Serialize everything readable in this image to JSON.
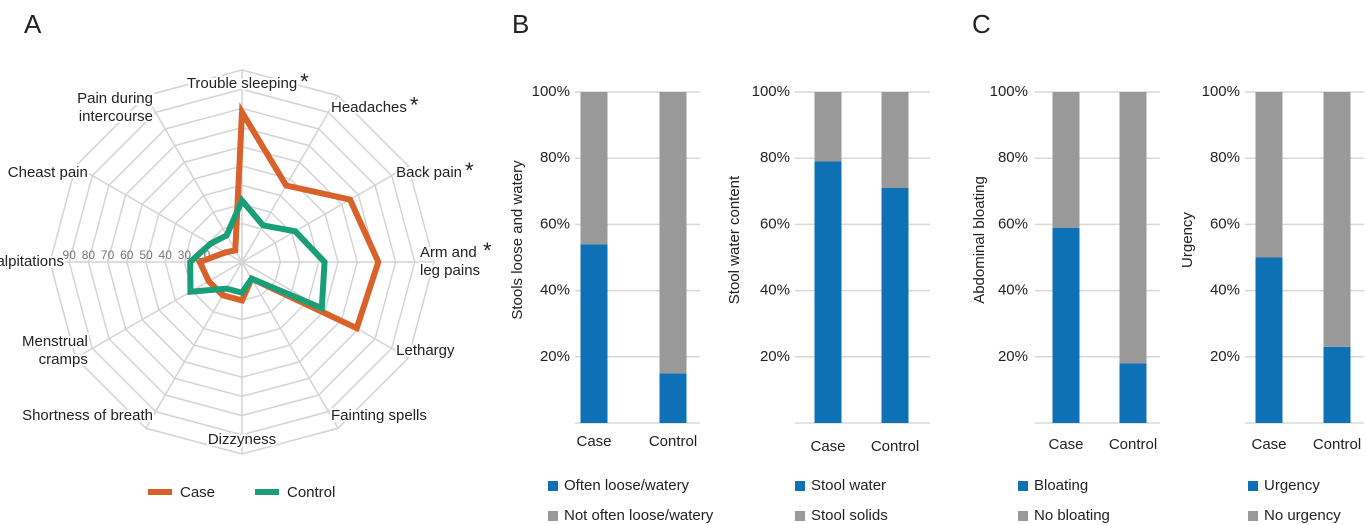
{
  "panel_labels": [
    "A",
    "B",
    "C"
  ],
  "chart_data": [
    {
      "type": "radar",
      "categories": [
        "Trouble sleeping",
        "Headaches",
        "Back pain",
        "Arm and\nleg pains",
        "Lethargy",
        "Fainting spells",
        "Dizzyness",
        "Shortness of breath",
        "Menstrual\ncramps",
        "Palpitations",
        "Cheast pain",
        "Pain during\nintercourse"
      ],
      "markers": [
        "*",
        "*",
        "*",
        "*",
        null,
        null,
        null,
        null,
        null,
        null,
        null,
        null
      ],
      "series": [
        {
          "name": "Case",
          "color": "#d9622b",
          "values": [
            78,
            46,
            65,
            71,
            69,
            10,
            20,
            20,
            20,
            22,
            10,
            7
          ]
        },
        {
          "name": "Control",
          "color": "#1a9e77",
          "values": [
            32,
            22,
            32,
            43,
            48,
            10,
            16,
            16,
            31,
            27,
            19,
            16
          ]
        }
      ],
      "rlim": [
        0,
        100
      ],
      "rticks": [
        20,
        30,
        40,
        50,
        60,
        70,
        80,
        90
      ],
      "legend": "bottom"
    },
    {
      "type": "stacked_bar",
      "ylabel": "Stools loose and watery",
      "categories": [
        "Case",
        "Control"
      ],
      "series": [
        {
          "name": "Often loose/watery",
          "color": "#0f71b5",
          "values": [
            54,
            15
          ]
        },
        {
          "name": "Not often loose/watery",
          "color": "#999999",
          "values": [
            46,
            85
          ]
        }
      ],
      "ylim": [
        0,
        100
      ],
      "yticks": [
        {
          "value": 20,
          "label": "20%"
        },
        {
          "value": 40,
          "label": "40%"
        },
        {
          "value": 60,
          "label": "60%"
        },
        {
          "value": 80,
          "label": "80%"
        },
        {
          "value": 100,
          "label": "100%"
        }
      ],
      "grid": true
    },
    {
      "type": "stacked_bar",
      "ylabel": "Stool water content",
      "categories": [
        "Case",
        "Control"
      ],
      "series": [
        {
          "name": "Stool water",
          "color": "#0f71b5",
          "values": [
            79,
            71
          ]
        },
        {
          "name": "Stool solids",
          "color": "#999999",
          "values": [
            21,
            29
          ]
        }
      ],
      "ylim": [
        0,
        100
      ],
      "yticks": [
        {
          "value": 20,
          "label": "20%"
        },
        {
          "value": 40,
          "label": "40%"
        },
        {
          "value": 60,
          "label": "60%"
        },
        {
          "value": 80,
          "label": "80%"
        },
        {
          "value": 100,
          "label": "100%"
        }
      ],
      "grid": true
    },
    {
      "type": "stacked_bar",
      "ylabel": "Abdominal bloating",
      "categories": [
        "Case",
        "Control"
      ],
      "series": [
        {
          "name": "Bloating",
          "color": "#0f71b5",
          "values": [
            59,
            18
          ]
        },
        {
          "name": "No bloating",
          "color": "#999999",
          "values": [
            41,
            82
          ]
        }
      ],
      "ylim": [
        0,
        100
      ],
      "yticks": [
        {
          "value": 20,
          "label": "20%"
        },
        {
          "value": 40,
          "label": "40%"
        },
        {
          "value": 60,
          "label": "60%"
        },
        {
          "value": 80,
          "label": "80%"
        },
        {
          "value": 100,
          "label": "100%"
        }
      ],
      "grid": true
    },
    {
      "type": "stacked_bar",
      "ylabel": "Urgency",
      "categories": [
        "Case",
        "Control"
      ],
      "series": [
        {
          "name": "Urgency",
          "color": "#0f71b5",
          "values": [
            50,
            23
          ]
        },
        {
          "name": "No urgency",
          "color": "#999999",
          "values": [
            50,
            77
          ]
        }
      ],
      "ylim": [
        0,
        100
      ],
      "yticks": [
        {
          "value": 20,
          "label": "20%"
        },
        {
          "value": 40,
          "label": "40%"
        },
        {
          "value": 60,
          "label": "60%"
        },
        {
          "value": 80,
          "label": "80%"
        },
        {
          "value": 100,
          "label": "100%"
        }
      ],
      "grid": true
    }
  ]
}
